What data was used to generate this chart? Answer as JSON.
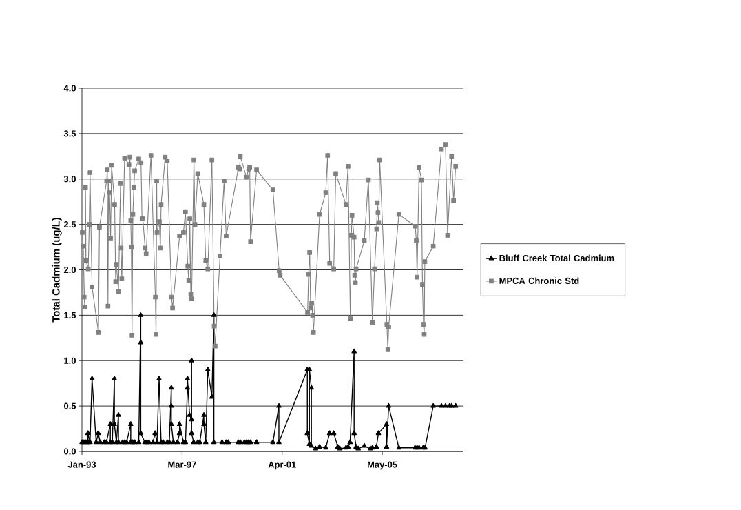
{
  "chart_data": {
    "type": "line",
    "ylabel": "Total Cadmium (ug/L)",
    "xlim": [
      "1993-01-31",
      "2008-09-26"
    ],
    "xticks": [
      {
        "value": "1993-01-31",
        "label": "Jan-93"
      },
      {
        "value": "1997-03-11",
        "label": "Mar-97"
      },
      {
        "value": "2001-04-19",
        "label": "Apr-01"
      },
      {
        "value": "2005-05-28",
        "label": "May-05"
      }
    ],
    "ylim": [
      0,
      4
    ],
    "yticks": [
      {
        "value": 0,
        "label": "0.0"
      },
      0.5,
      {
        "value": 1,
        "label": "1.0"
      },
      1.5,
      {
        "value": 2,
        "label": "2.0"
      },
      2.5,
      {
        "value": 3,
        "label": "3.0"
      },
      3.5,
      {
        "value": 4,
        "label": "4.0"
      }
    ],
    "grid": "y",
    "legend": "right",
    "series": [
      {
        "name": "Bluff Creek Total Cadmium",
        "color": "#000000",
        "marker": "triangle",
        "x": [
          "1993-02",
          "1993-03",
          "1993-04",
          "1993-05",
          "1993-05",
          "1993-06",
          "1993-07",
          "1993-09",
          "1993-10",
          "1993-11",
          "1994-01",
          "1994-02",
          "1994-04",
          "1994-04",
          "1994-05",
          "1994-06",
          "1994-06",
          "1994-07",
          "1994-08",
          "1994-08",
          "1994-10",
          "1994-11",
          "1994-12",
          "1995-02",
          "1995-02",
          "1995-03",
          "1995-04",
          "1995-06",
          "1995-07",
          "1995-07",
          "1995-07",
          "1995-09",
          "1995-10",
          "1995-11",
          "1996-01",
          "1996-02",
          "1996-03",
          "1996-04",
          "1996-05",
          "1996-06",
          "1996-08",
          "1996-09",
          "1996-10",
          "1996-10",
          "1996-10",
          "1996-11",
          "1997-01",
          "1997-02",
          "1997-02",
          "1997-04",
          "1997-05",
          "1997-06",
          "1997-06",
          "1997-07",
          "1997-08",
          "1997-08",
          "1997-08",
          "1997-09",
          "1997-11",
          "1997-12",
          "1998-02",
          "1998-02",
          "1998-03",
          "1998-04",
          "1998-06",
          "1998-07",
          "1998-07",
          "1998-11",
          "1999-01",
          "1999-02",
          "1999-07",
          "1999-08",
          "1999-10",
          "1999-11",
          "1999-12",
          "2000-01",
          "2000-04",
          "2000-12",
          "2001-03",
          "2001-03",
          "2002-05",
          "2002-05",
          "2002-06",
          "2002-06",
          "2002-07",
          "2002-07",
          "2002-09",
          "2002-11",
          "2003-02",
          "2003-04",
          "2003-06",
          "2003-08",
          "2003-09",
          "2003-12",
          "2004-01",
          "2004-02",
          "2004-04",
          "2004-04",
          "2004-05",
          "2004-06",
          "2004-09",
          "2004-12",
          "2005-01",
          "2005-03",
          "2005-04",
          "2005-08",
          "2005-08",
          "2005-09",
          "2006-02",
          "2006-10",
          "2006-11",
          "2006-12",
          "2007-02",
          "2007-03",
          "2007-07",
          "2007-11",
          "2008-01",
          "2008-03",
          "2008-04",
          "2008-06"
        ],
        "values": [
          0.1,
          0.1,
          0.1,
          0.1,
          0.2,
          0.1,
          0.8,
          0.1,
          0.2,
          0.1,
          0.1,
          0.1,
          0.3,
          0.1,
          0.1,
          0.8,
          0.3,
          0.1,
          0.4,
          0.1,
          0.1,
          0.1,
          0.1,
          0.3,
          0.1,
          0.1,
          0.1,
          0.1,
          1.5,
          1.2,
          0.2,
          0.1,
          0.1,
          0.1,
          0.1,
          0.2,
          0.1,
          0.8,
          0.1,
          0.1,
          0.1,
          0.1,
          0.7,
          0.5,
          0.3,
          0.1,
          0.1,
          0.2,
          0.3,
          0.1,
          0.1,
          0.7,
          0.8,
          0.4,
          0.35,
          1.0,
          0.2,
          0.1,
          0.1,
          0.1,
          0.4,
          0.3,
          0.1,
          0.9,
          0.6,
          1.5,
          0.1,
          0.1,
          0.1,
          0.1,
          0.1,
          0.1,
          0.1,
          0.1,
          0.1,
          0.1,
          0.1,
          0.1,
          0.5,
          0.1,
          0.9,
          0.2,
          0.08,
          0.9,
          0.7,
          0.06,
          0.03,
          0.05,
          0.04,
          0.2,
          0.2,
          0.05,
          0.03,
          0.04,
          0.05,
          0.1,
          1.1,
          0.2,
          0.05,
          0.03,
          0.06,
          0.03,
          0.04,
          0.05,
          0.2,
          0.3,
          0.05,
          0.5,
          0.04,
          0.04,
          0.04,
          0.04,
          0.04,
          0.04,
          0.5,
          0.5,
          0.5,
          0.5,
          0.5,
          0.5
        ]
      },
      {
        "name": "MPCA Chronic  Std",
        "color": "#808080",
        "marker": "square",
        "x": [
          "1993-02-05",
          "1993-02-20",
          "1993-03-05",
          "1993-03-15",
          "1993-03-25",
          "1993-04",
          "1993-05-05",
          "1993-05-20",
          "1993-06",
          "1993-07",
          "1993-10-05",
          "1993-10-20",
          "1994-02-05",
          "1994-02-15",
          "1994-02-25",
          "1994-03-05",
          "1994-03-20",
          "1994-04-05",
          "1994-04-20",
          "1994-06-05",
          "1994-06-20",
          "1994-07",
          "1994-08",
          "1994-09-01",
          "1994-09-10",
          "1994-09-20",
          "1994-11",
          "1995-01-05",
          "1995-01-20",
          "1995-02-01",
          "1995-02-10",
          "1995-02-20",
          "1995-03-05",
          "1995-03-20",
          "1995-04",
          "1995-06",
          "1995-07-05",
          "1995-07-20",
          "1995-08",
          "1995-09-05",
          "1995-09-20",
          "1995-12",
          "1996-02-05",
          "1996-02-15",
          "1996-02-25",
          "1996-03",
          "1996-04-05",
          "1996-04-20",
          "1996-05",
          "1996-07",
          "1996-08",
          "1996-10-05",
          "1996-10-20",
          "1997-02",
          "1997-04",
          "1997-05",
          "1997-06-05",
          "1997-06-20",
          "1997-07-05",
          "1997-07-20",
          "1997-08",
          "1997-09-05",
          "1997-09-20",
          "1997-11",
          "1998-02",
          "1998-03",
          "1998-04",
          "1998-06",
          "1998-07-05",
          "1998-07-20",
          "1998-10",
          "1998-12",
          "1999-01",
          "1999-07-05",
          "1999-07-20",
          "1999-08",
          "1999-11",
          "1999-12-05",
          "1999-12-20",
          "2000-01",
          "2000-04",
          "2000-12",
          "2001-03-05",
          "2001-03-20",
          "2002-05-05",
          "2002-05-20",
          "2002-06-05",
          "2002-06-20",
          "2002-07-05",
          "2002-07-20",
          "2002-08",
          "2002-11",
          "2003-02",
          "2003-03",
          "2003-04",
          "2003-06",
          "2003-07",
          "2003-12",
          "2004-01",
          "2004-02-05",
          "2004-02-20",
          "2004-03",
          "2004-04-01",
          "2004-04-10",
          "2004-04-20",
          "2004-05",
          "2004-09",
          "2004-11",
          "2005-01",
          "2005-02",
          "2005-03-05",
          "2005-03-15",
          "2005-03-25",
          "2005-04-05",
          "2005-04-20",
          "2005-08-05",
          "2005-08-20",
          "2005-09",
          "2006-02",
          "2006-10-05",
          "2006-10-20",
          "2006-11",
          "2006-12",
          "2007-01-05",
          "2007-01-20",
          "2007-02-05",
          "2007-02-15",
          "2007-02-25",
          "2007-07",
          "2007-11",
          "2008-01",
          "2008-02",
          "2008-04",
          "2008-05",
          "2008-06"
        ],
        "values": [
          2.41,
          2.26,
          1.7,
          1.59,
          2.91,
          2.1,
          2.01,
          2.5,
          3.07,
          1.81,
          1.31,
          2.47,
          2.98,
          3.1,
          1.6,
          2.98,
          2.85,
          2.35,
          3.15,
          2.72,
          1.87,
          2.06,
          1.76,
          2.95,
          2.24,
          1.9,
          3.23,
          3.16,
          3.24,
          2.54,
          2.25,
          1.28,
          2.61,
          2.91,
          3.09,
          3.22,
          3.18,
          2.56,
          2.56,
          2.24,
          2.18,
          3.26,
          1.7,
          1.29,
          2.98,
          2.41,
          2.53,
          2.24,
          2.72,
          3.24,
          3.2,
          1.7,
          1.58,
          2.37,
          2.41,
          2.64,
          2.04,
          1.88,
          2.56,
          1.73,
          1.68,
          3.21,
          2.5,
          3.06,
          2.72,
          2.1,
          2.01,
          3.21,
          1.38,
          1.16,
          2.15,
          2.98,
          2.37,
          3.13,
          3.11,
          3.25,
          3.02,
          3.11,
          3.13,
          2.31,
          3.1,
          2.88,
          1.99,
          1.94,
          1.53,
          1.95,
          2.19,
          1.58,
          1.63,
          1.5,
          1.31,
          2.61,
          2.85,
          3.26,
          2.07,
          2.01,
          3.06,
          2.72,
          3.14,
          1.46,
          2.38,
          2.6,
          2.36,
          1.94,
          1.86,
          2.01,
          2.32,
          2.99,
          1.42,
          2.01,
          2.45,
          2.74,
          2.63,
          2.52,
          3.21,
          1.4,
          1.12,
          1.37,
          2.61,
          2.48,
          2.32,
          1.92,
          3.13,
          2.99,
          1.84,
          1.4,
          1.29,
          2.09,
          2.26,
          3.33,
          3.38,
          2.38,
          3.25,
          2.76,
          3.14
        ]
      }
    ]
  }
}
